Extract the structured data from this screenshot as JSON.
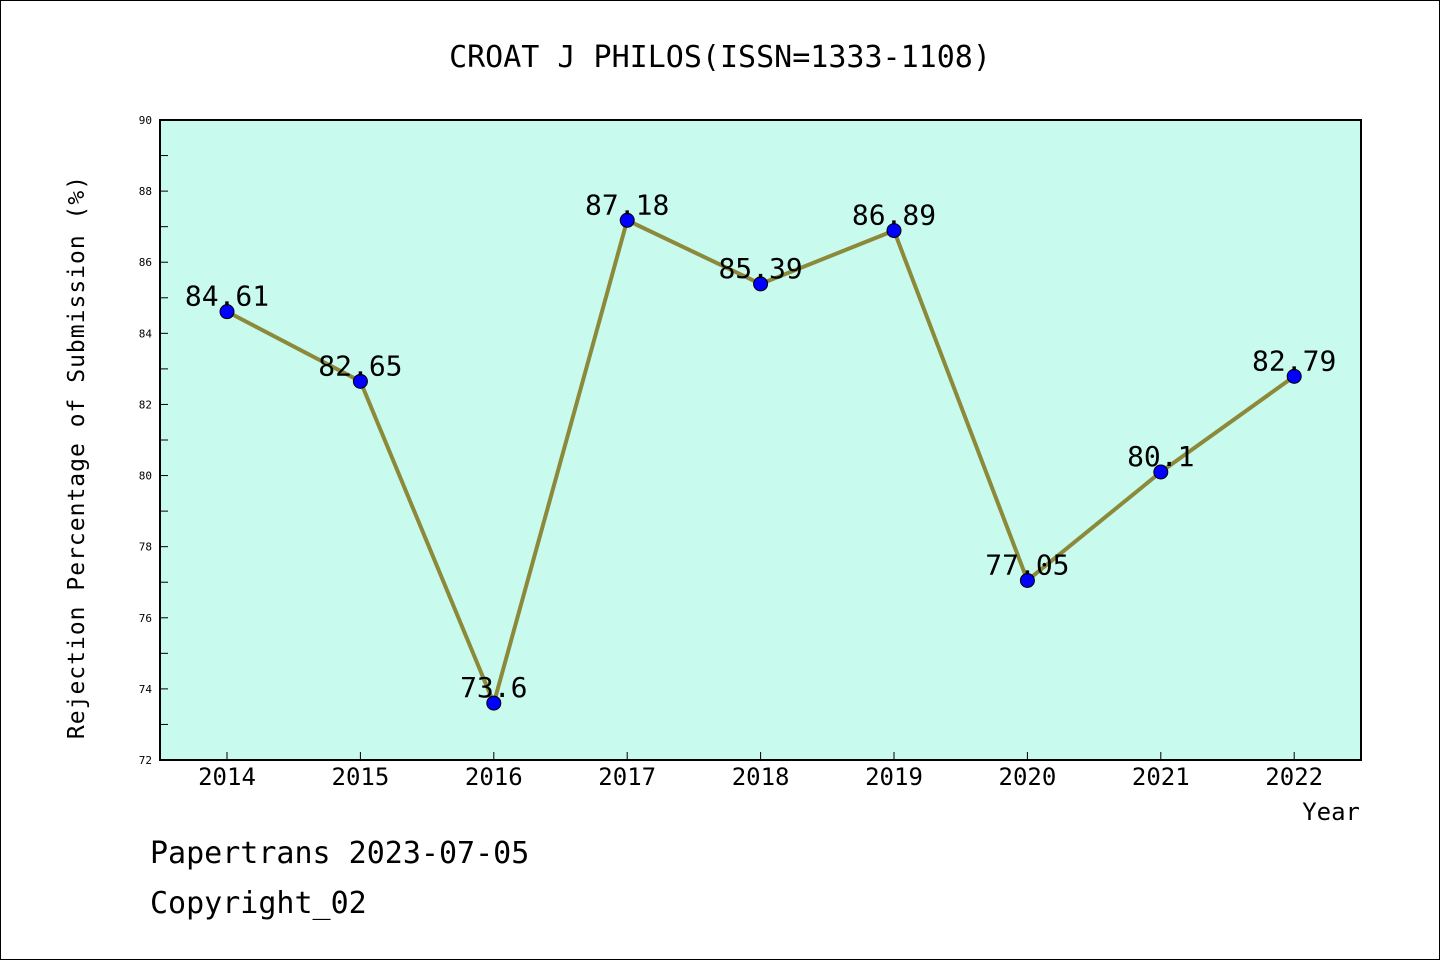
{
  "chart_data": {
    "type": "line",
    "title": "CROAT J PHILOS(ISSN=1333-1108)",
    "xlabel": "Year",
    "ylabel": "Rejection Percentage of Submission (%)",
    "categories": [
      "2014",
      "2015",
      "2016",
      "2017",
      "2018",
      "2019",
      "2020",
      "2021",
      "2022"
    ],
    "values": [
      84.61,
      82.65,
      73.6,
      87.18,
      85.39,
      86.89,
      77.05,
      80.1,
      82.79
    ],
    "data_labels": [
      "84.61",
      "82.65",
      "73.6",
      "87.18",
      "85.39",
      "86.89",
      "77.05",
      "80.1",
      "82.79"
    ],
    "ylim": [
      72,
      90
    ],
    "yticks": [
      72,
      74,
      76,
      78,
      80,
      82,
      84,
      86,
      88,
      90
    ],
    "grid": false,
    "colors": {
      "plot_background": "#c8fbee",
      "line": "#8c8a3a",
      "marker": "#0000ff"
    }
  },
  "footer": {
    "line1": "Papertrans 2023-07-05",
    "line2": "Copyright_02"
  }
}
